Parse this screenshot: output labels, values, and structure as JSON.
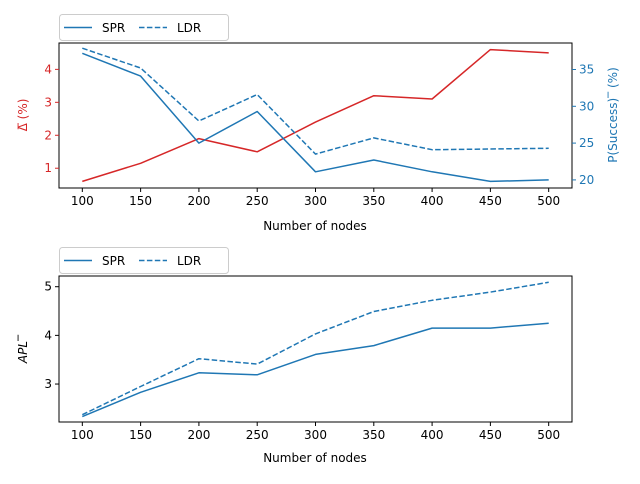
{
  "chart_data": [
    {
      "type": "line",
      "xlabel": "Number of nodes",
      "ylabel_left": "Δ̅ (%)",
      "ylabel_right": "P(Success)‾ (%)",
      "x": [
        100,
        150,
        200,
        250,
        300,
        350,
        400,
        450,
        500
      ],
      "x_ticks": [
        "100",
        "150",
        "200",
        "250",
        "300",
        "350",
        "400",
        "450",
        "500"
      ],
      "y_left_ticks": [
        "1",
        "2",
        "3",
        "4"
      ],
      "y_right_ticks": [
        "20",
        "25",
        "30",
        "35"
      ],
      "ylim_left": [
        0.4,
        4.8
      ],
      "ylim_right": [
        18.9,
        38.6
      ],
      "legend": [
        "SPR",
        "LDR"
      ],
      "legend_position": "above-left",
      "colors": {
        "left_axis": "#d62728",
        "right_axis": "#1f77b4"
      },
      "series": [
        {
          "axis": "left",
          "style": "solid",
          "color": "#d62728",
          "values": [
            0.6,
            1.15,
            1.9,
            1.5,
            2.4,
            3.2,
            3.1,
            4.6,
            4.5
          ]
        },
        {
          "axis": "right",
          "style": "solid",
          "color": "#1f77b4",
          "values": [
            37.2,
            34.1,
            25.0,
            29.3,
            21.1,
            22.7,
            21.1,
            19.8,
            20.0
          ]
        },
        {
          "axis": "right",
          "style": "dashed",
          "color": "#1f77b4",
          "values": [
            37.9,
            35.2,
            28.0,
            31.6,
            23.5,
            25.7,
            24.1,
            24.2,
            24.3
          ]
        }
      ]
    },
    {
      "type": "line",
      "xlabel": "Number of nodes",
      "ylabel": "APL‾",
      "x": [
        100,
        150,
        200,
        250,
        300,
        350,
        400,
        450,
        500
      ],
      "x_ticks": [
        "100",
        "150",
        "200",
        "250",
        "300",
        "350",
        "400",
        "450",
        "500"
      ],
      "y_ticks": [
        "3",
        "4",
        "5"
      ],
      "ylim": [
        2.22,
        5.22
      ],
      "legend": [
        "SPR",
        "LDR"
      ],
      "legend_position": "above-left",
      "series": [
        {
          "name": "SPR",
          "style": "solid",
          "color": "#1f77b4",
          "values": [
            2.33,
            2.83,
            3.23,
            3.19,
            3.61,
            3.79,
            4.15,
            4.15,
            4.25
          ]
        },
        {
          "name": "LDR",
          "style": "dashed",
          "color": "#1f77b4",
          "values": [
            2.37,
            2.95,
            3.52,
            3.41,
            4.03,
            4.49,
            4.72,
            4.89,
            5.09
          ]
        }
      ]
    }
  ]
}
